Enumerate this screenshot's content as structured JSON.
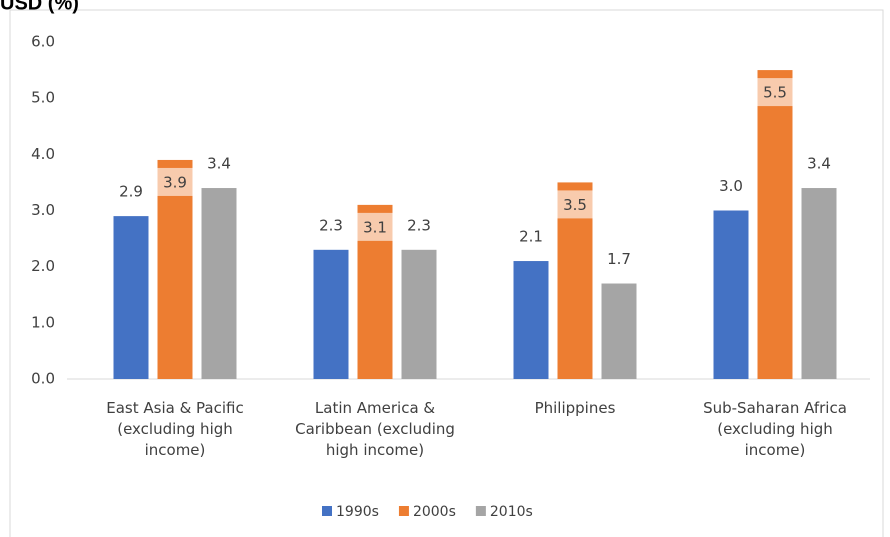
{
  "chart_data": {
    "type": "bar",
    "title": "USD (%)",
    "categories": [
      "East Asia & Pacific (excluding high income)",
      "Latin America & Caribbean (excluding high income)",
      "Philippines",
      "Sub-Saharan Africa (excluding high income)"
    ],
    "series": [
      {
        "name": "1990s",
        "color": "#4472c4",
        "values": [
          2.9,
          2.3,
          2.1,
          3.0
        ],
        "value_labels": [
          "2.9",
          "2.3",
          "2.1",
          "3.0"
        ]
      },
      {
        "name": "2000s",
        "color": "#ed7d31",
        "values": [
          3.9,
          3.1,
          3.5,
          5.5
        ]
      },
      {
        "name": "2010s",
        "color": "#a5a5a5",
        "values": [
          3.4,
          2.3,
          1.7,
          3.4
        ]
      }
    ],
    "ylim": [
      0,
      6
    ],
    "yticks": [
      {
        "value": 0,
        "label": "0.0"
      },
      {
        "value": 1,
        "label": "1.0"
      },
      {
        "value": 2,
        "label": "2.0"
      },
      {
        "value": 3,
        "label": "3.0"
      },
      {
        "value": 4,
        "label": "4.0"
      },
      {
        "value": 5,
        "label": "5.0"
      },
      {
        "value": 6,
        "label": "6.0"
      }
    ],
    "grid": false,
    "legend": "bottom"
  }
}
